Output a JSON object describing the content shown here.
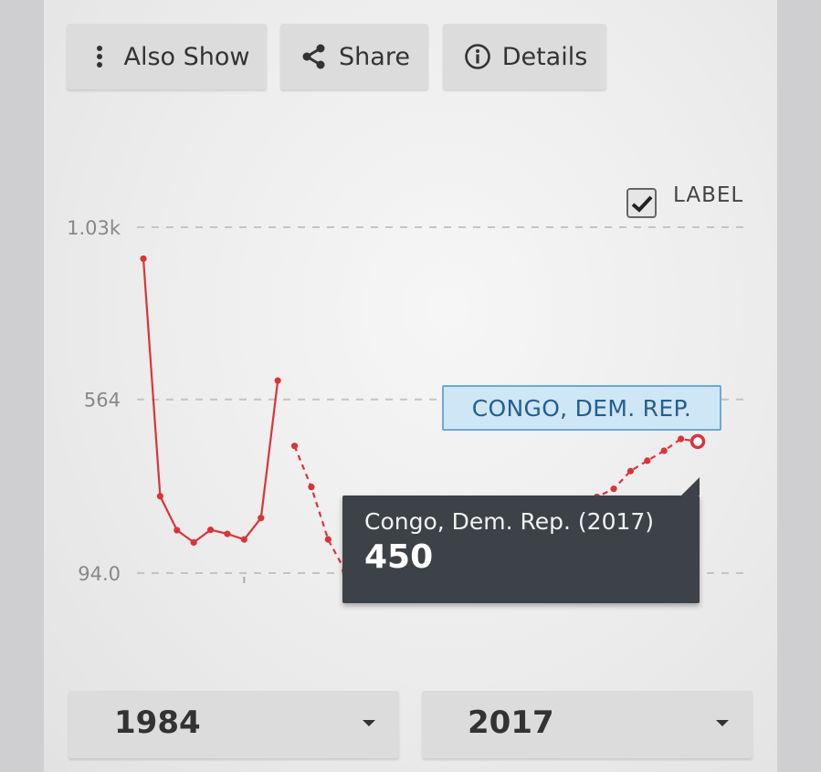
{
  "toolbar": {
    "also_show_label": "Also Show",
    "share_label": "Share",
    "details_label": "Details"
  },
  "label_toggle": {
    "text": "LABEL",
    "checked": true
  },
  "series_tag": "CONGO, DEM. REP.",
  "tooltip": {
    "title": "Congo, Dem. Rep. (2017)",
    "value": "450"
  },
  "year_range": {
    "start": "1984",
    "end": "2017"
  },
  "colors": {
    "series": "#d9343a",
    "tooltip_bg": "#3c4247",
    "tag_bg": "#cfe6f6"
  },
  "chart_data": {
    "type": "line",
    "title": "",
    "xlabel": "",
    "ylabel": "",
    "y_ticks": [
      "1.03k",
      "564",
      "94.0"
    ],
    "y_tick_values": [
      1030,
      564,
      94
    ],
    "ylim": [
      94,
      1030
    ],
    "xlim": [
      1984,
      2017
    ],
    "grid": true,
    "series": [
      {
        "name": "Congo, Dem. Rep.",
        "points": [
          [
            1984,
            945
          ],
          [
            1985,
            302
          ],
          [
            1986,
            210
          ],
          [
            1987,
            177
          ],
          [
            1988,
            211
          ],
          [
            1989,
            200
          ],
          [
            1990,
            185
          ],
          [
            1991,
            243
          ],
          [
            1992,
            615
          ],
          [
            null,
            null
          ],
          [
            1993,
            438
          ],
          [
            1994,
            327
          ],
          [
            1995,
            185
          ],
          [
            1996,
            101
          ],
          [
            1997,
            96
          ],
          [
            1998,
            96
          ],
          [
            1999,
            104
          ],
          [
            2000,
            117
          ],
          [
            2001,
            152
          ],
          [
            2002,
            201
          ],
          [
            2003,
            172
          ],
          [
            2004,
            171
          ],
          [
            2005,
            210
          ],
          [
            2006,
            242
          ],
          [
            2007,
            255
          ],
          [
            2008,
            257
          ],
          [
            2009,
            273
          ],
          [
            2010,
            285
          ],
          [
            2011,
            300
          ],
          [
            2012,
            322
          ],
          [
            2013,
            370
          ],
          [
            2014,
            398
          ],
          [
            2015,
            425
          ],
          [
            2016,
            457
          ],
          [
            2017,
            450
          ]
        ]
      }
    ]
  }
}
